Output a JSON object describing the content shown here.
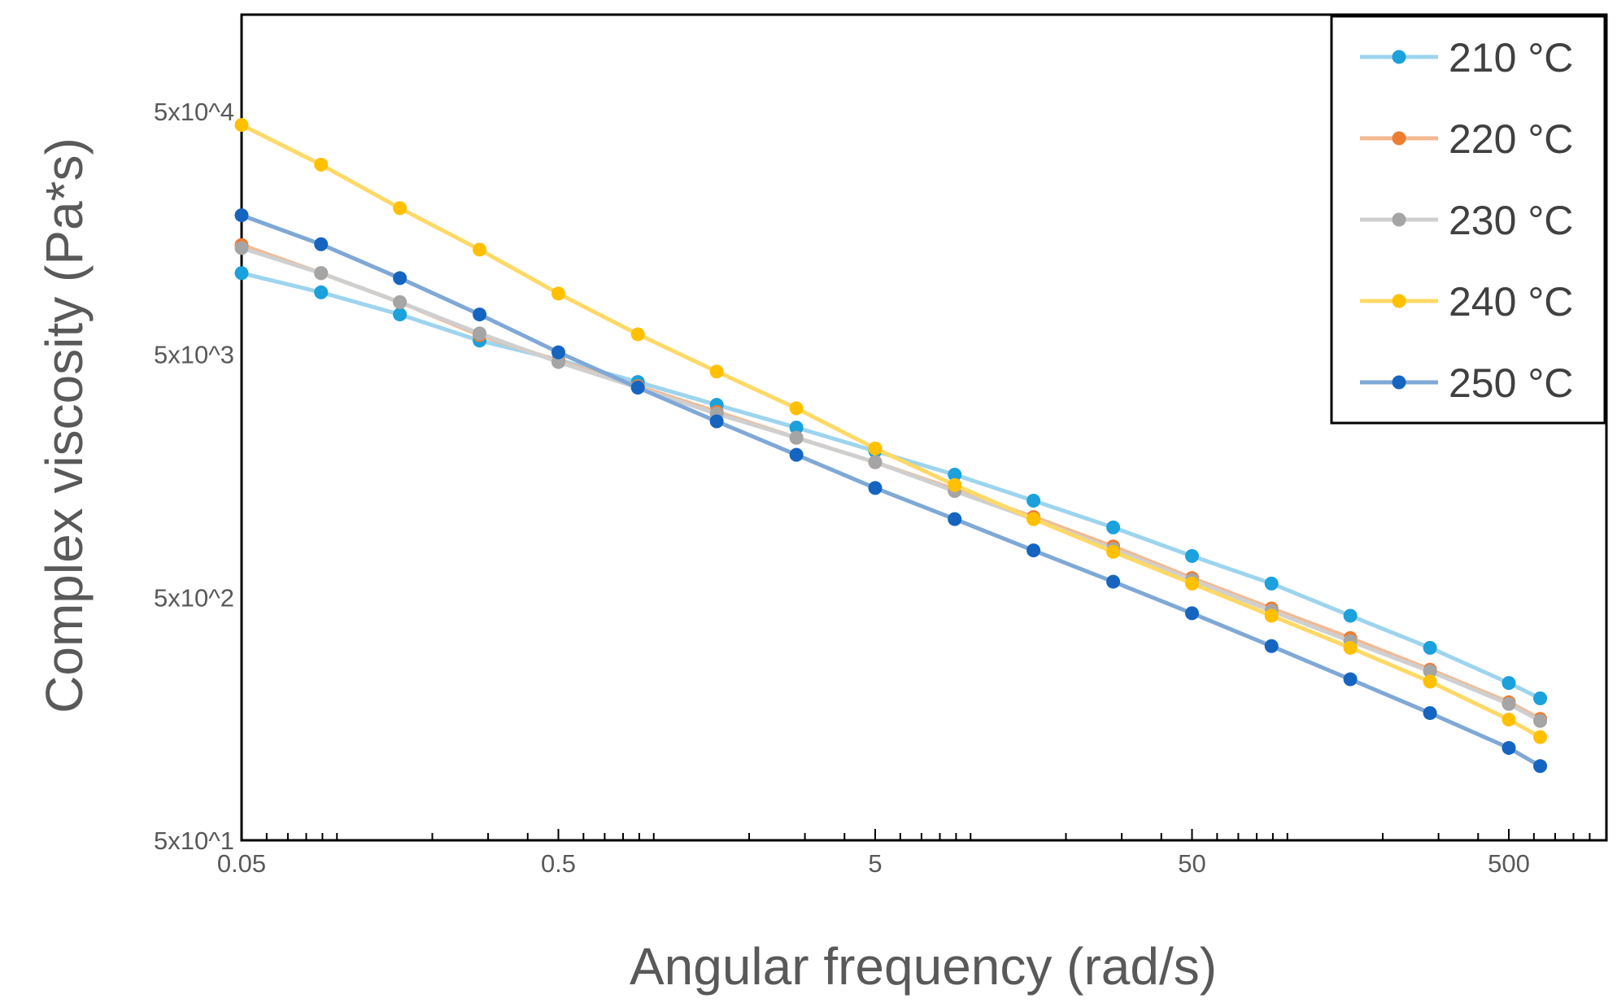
{
  "chart_data": {
    "type": "line",
    "title": "",
    "xlabel": "Angular frequency (rad/s)",
    "ylabel": "Complex viscosity (Pa*s)",
    "xscale": "log",
    "yscale": "log",
    "xlim": [
      0.05,
      850
    ],
    "ylim": [
      50,
      150000
    ],
    "xticks": [
      {
        "value": 0.05,
        "label": "0.05"
      },
      {
        "value": 0.5,
        "label": "0.5"
      },
      {
        "value": 5,
        "label": "5"
      },
      {
        "value": 50,
        "label": "50"
      },
      {
        "value": 500,
        "label": "500"
      }
    ],
    "yticks": [
      {
        "value": 50,
        "label": "5x10^1"
      },
      {
        "value": 500,
        "label": "5x10^2"
      },
      {
        "value": 5000,
        "label": "5x10^3"
      },
      {
        "value": 50000,
        "label": "5x10^4"
      }
    ],
    "grid": false,
    "legend_position": "top-right",
    "x": [
      0.05,
      0.0891,
      0.158,
      0.282,
      0.5,
      0.891,
      1.58,
      2.82,
      5,
      8.91,
      15.8,
      28.2,
      50,
      89.1,
      158,
      282,
      500,
      628
    ],
    "series": [
      {
        "name": "210 °C",
        "color": "#1ba1dc",
        "line_color": "#9dd4ee",
        "values": [
          10800,
          9000,
          7300,
          5700,
          4750,
          3850,
          3100,
          2500,
          2000,
          1600,
          1250,
          970,
          740,
          570,
          420,
          310,
          222,
          192
        ]
      },
      {
        "name": "220 °C",
        "color": "#ed7d31",
        "line_color": "#f4b890",
        "values": [
          14100,
          10800,
          8200,
          6000,
          4700,
          3700,
          2900,
          2270,
          1800,
          1390,
          1070,
          810,
          600,
          450,
          340,
          252,
          185,
          158
        ]
      },
      {
        "name": "230 °C",
        "color": "#a5a5a5",
        "line_color": "#cfcfcf",
        "values": [
          13700,
          10800,
          8200,
          6100,
          4650,
          3650,
          2850,
          2270,
          1800,
          1370,
          1050,
          790,
          590,
          440,
          330,
          248,
          182,
          155
        ]
      },
      {
        "name": "240 °C",
        "color": "#ffc000",
        "line_color": "#ffd966",
        "values": [
          44000,
          30200,
          20000,
          13500,
          8900,
          6050,
          4250,
          3000,
          2050,
          1450,
          1050,
          770,
          570,
          420,
          310,
          225,
          157,
          133
        ]
      },
      {
        "name": "250 °C",
        "color": "#1565c0",
        "line_color": "#7fa8d6",
        "values": [
          18700,
          14200,
          10300,
          7300,
          5100,
          3650,
          2650,
          1930,
          1410,
          1050,
          780,
          580,
          430,
          315,
          230,
          167,
          120,
          101
        ]
      }
    ]
  }
}
